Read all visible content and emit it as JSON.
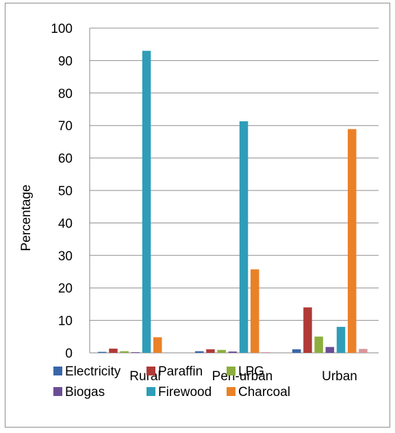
{
  "chart_data": {
    "type": "bar",
    "categories": [
      "Rural",
      "Peri-urban",
      "Urban"
    ],
    "ylabel": "Percentage",
    "ylim": [
      0,
      100
    ],
    "yticks": [
      0,
      10,
      20,
      30,
      40,
      50,
      60,
      70,
      80,
      90,
      100
    ],
    "grid": true,
    "legend_position": "bottom",
    "series": [
      {
        "name": "Electricity",
        "color": "#3a66a8",
        "values": [
          0.3,
          0.5,
          1.1
        ]
      },
      {
        "name": "Paraffin",
        "color": "#b03a37",
        "values": [
          1.3,
          1.1,
          14.0
        ]
      },
      {
        "name": "LPG",
        "color": "#8cae3f",
        "values": [
          0.5,
          0.9,
          5.0
        ]
      },
      {
        "name": "Biogas",
        "color": "#6b4d94",
        "values": [
          0.2,
          0.4,
          1.8
        ]
      },
      {
        "name": "Firewood",
        "color": "#2f9db8",
        "values": [
          93.0,
          71.3,
          8.0
        ]
      },
      {
        "name": "Charcoal",
        "color": "#ea8128",
        "values": [
          4.8,
          25.7,
          68.9
        ]
      },
      {
        "name": "",
        "color": "#d9959a",
        "values": [
          0.0,
          0.2,
          1.2
        ]
      }
    ]
  }
}
